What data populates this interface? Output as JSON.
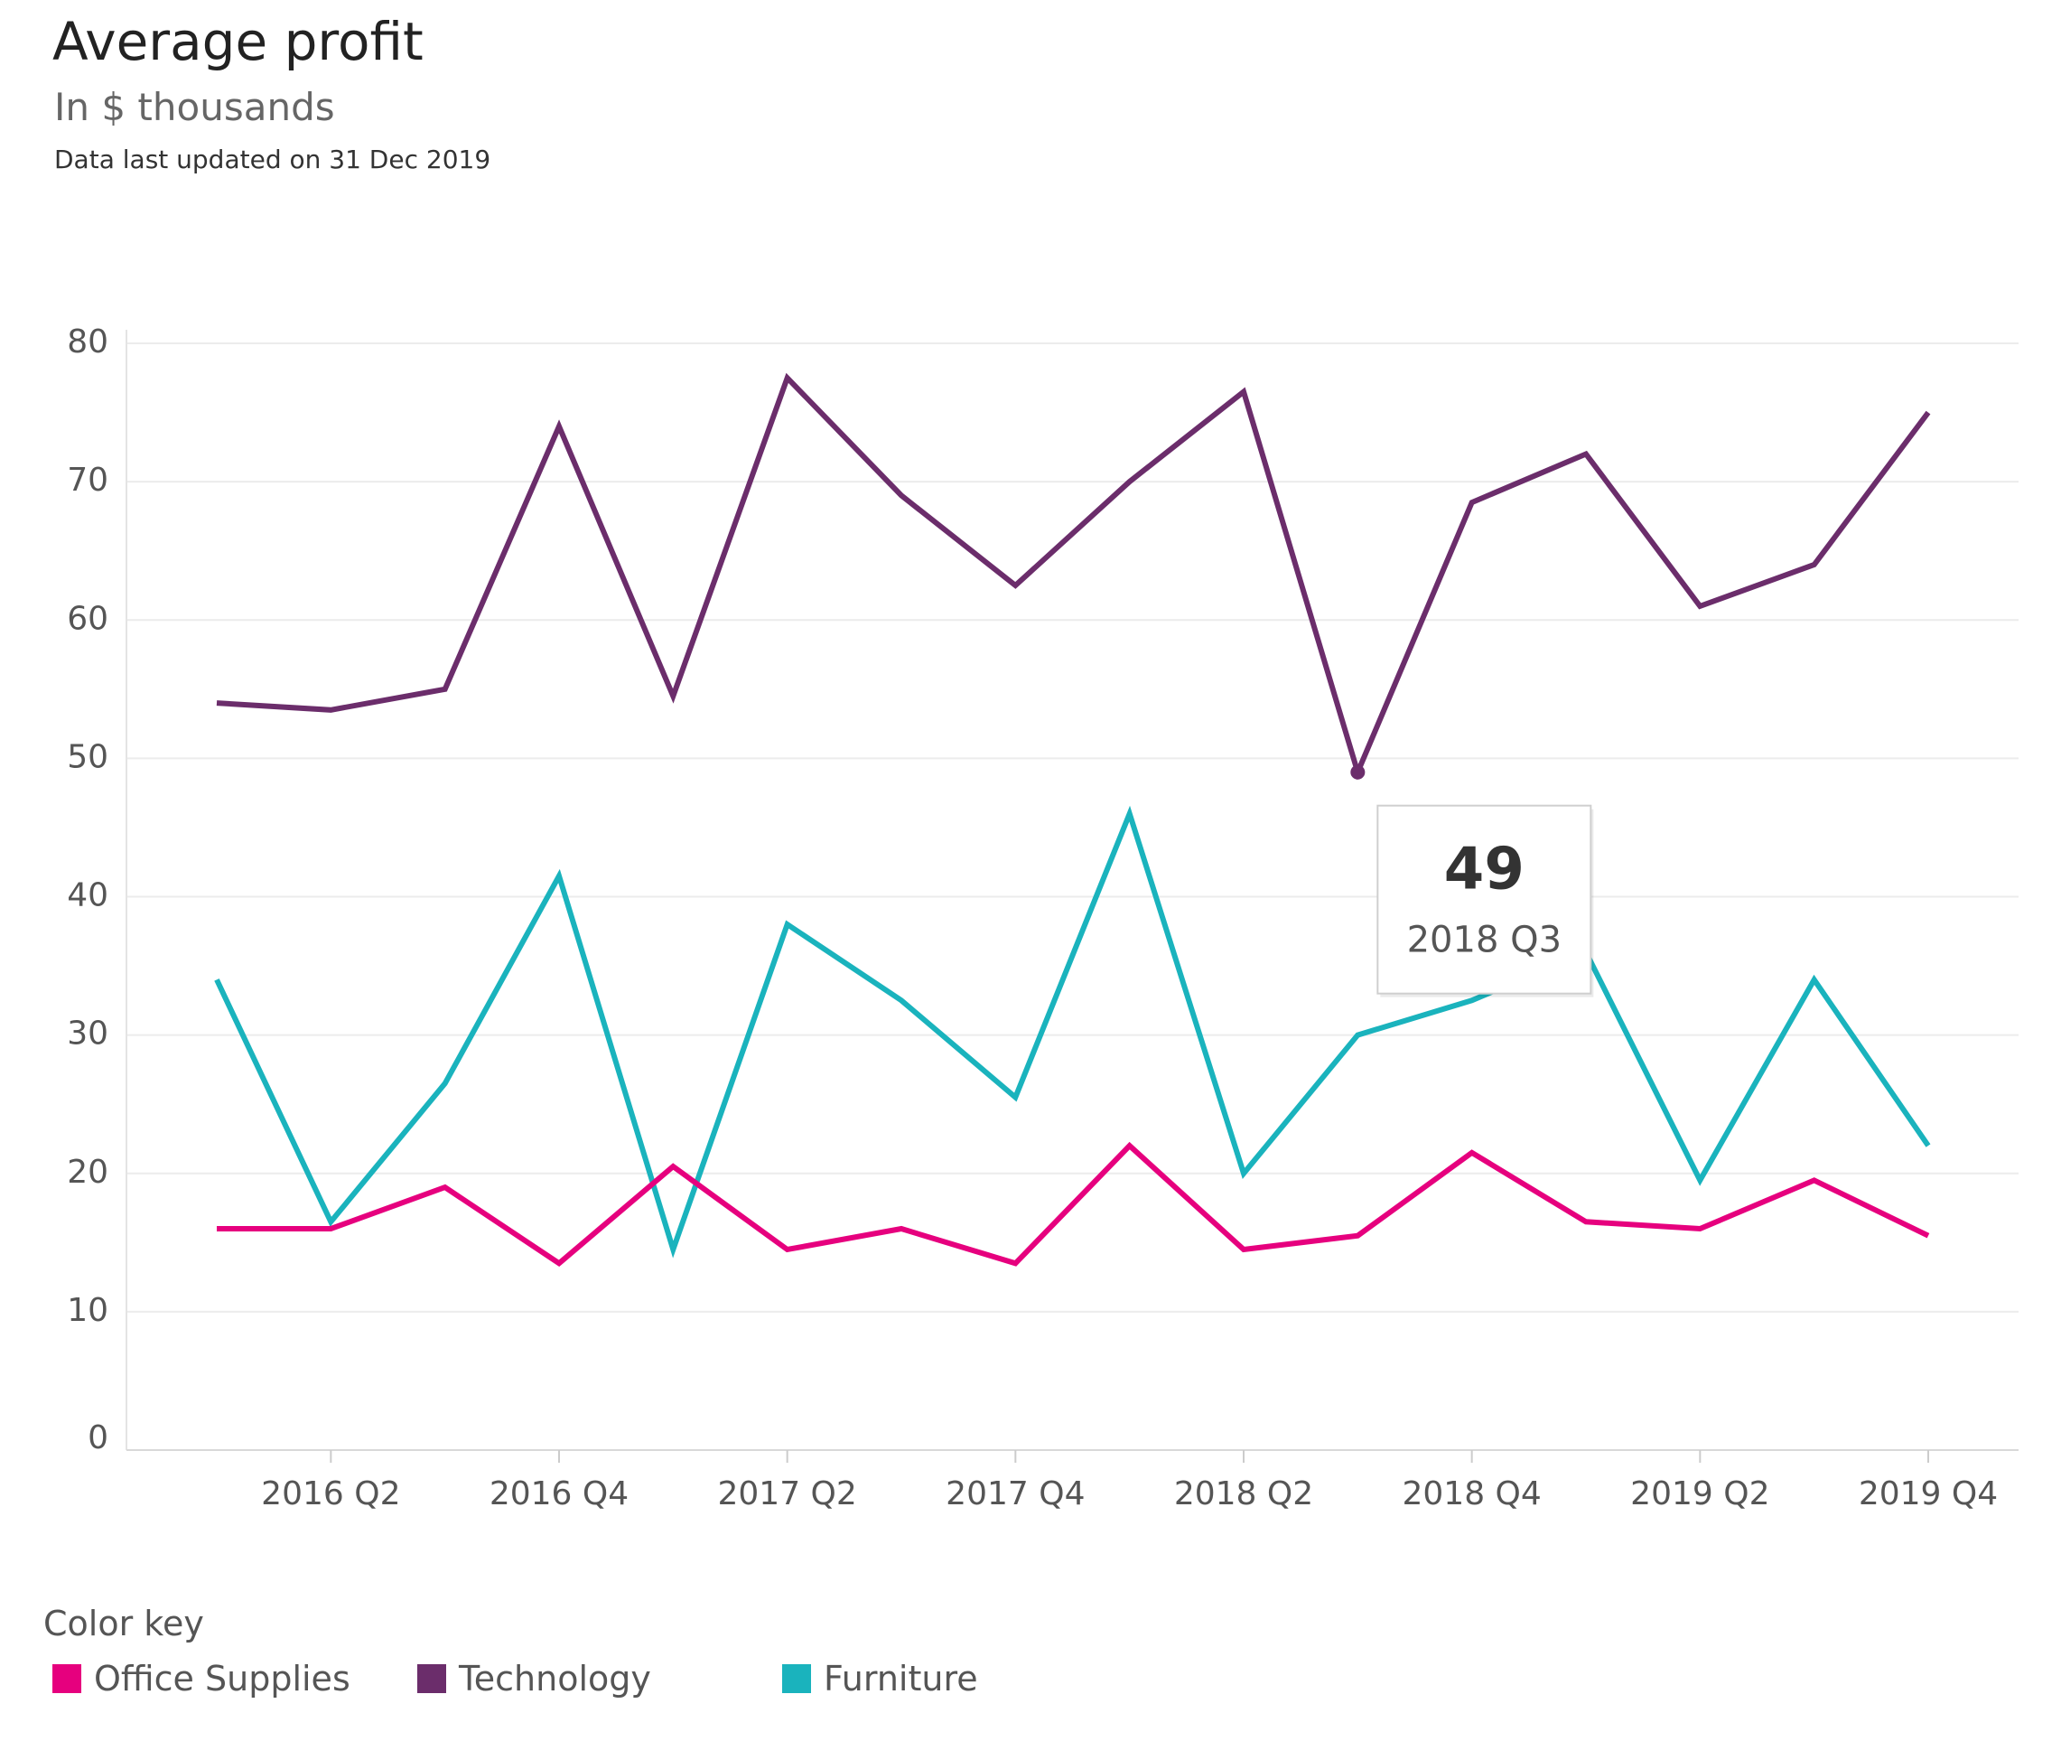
{
  "chart_data": {
    "type": "line",
    "title": "Average profit",
    "subtitle": "In $ thousands",
    "note": "Data last updated on 31 Dec 2019",
    "xlabel": "",
    "ylabel": "",
    "ylim": [
      0,
      80
    ],
    "yticks": [
      0,
      10,
      20,
      30,
      40,
      50,
      60,
      70,
      80
    ],
    "x": [
      "2016 Q1",
      "2016 Q2",
      "2016 Q3",
      "2016 Q4",
      "2017 Q1",
      "2017 Q2",
      "2017 Q3",
      "2017 Q4",
      "2018 Q1",
      "2018 Q2",
      "2018 Q3",
      "2018 Q4",
      "2019 Q1",
      "2019 Q2",
      "2019 Q3",
      "2019 Q4"
    ],
    "xtick_labels": [
      "2016 Q2",
      "2016 Q4",
      "2017 Q2",
      "2017 Q4",
      "2018 Q2",
      "2018 Q4",
      "2019 Q2",
      "2019 Q4"
    ],
    "grid": true,
    "series": [
      {
        "name": "Technology",
        "color": "#6b2d6b",
        "values": [
          54,
          53.5,
          55,
          74,
          54.5,
          77.5,
          69,
          62.5,
          70,
          76.5,
          49,
          68.5,
          72,
          61,
          64,
          75
        ]
      },
      {
        "name": "Furniture",
        "color": "#1ab3bd",
        "values": [
          34,
          16.5,
          26.5,
          41.5,
          14.5,
          38,
          32.5,
          25.5,
          46,
          20,
          30,
          32.5,
          36,
          19.5,
          34,
          22
        ]
      },
      {
        "name": "Office Supplies",
        "color": "#e6007e",
        "values": [
          16,
          16,
          19,
          13.5,
          20.5,
          14.5,
          16,
          13.5,
          22,
          14.5,
          15.5,
          21.5,
          16.5,
          16,
          19.5,
          15.5
        ]
      }
    ],
    "tooltip": {
      "value": "49",
      "label": "2018 Q3"
    },
    "legend": {
      "title": "Color key",
      "position": "bottom-left",
      "items": [
        {
          "label": "Office Supplies",
          "color": "#e6007e"
        },
        {
          "label": "Technology",
          "color": "#6b2d6b"
        },
        {
          "label": "Furniture",
          "color": "#1ab3bd"
        }
      ]
    }
  }
}
